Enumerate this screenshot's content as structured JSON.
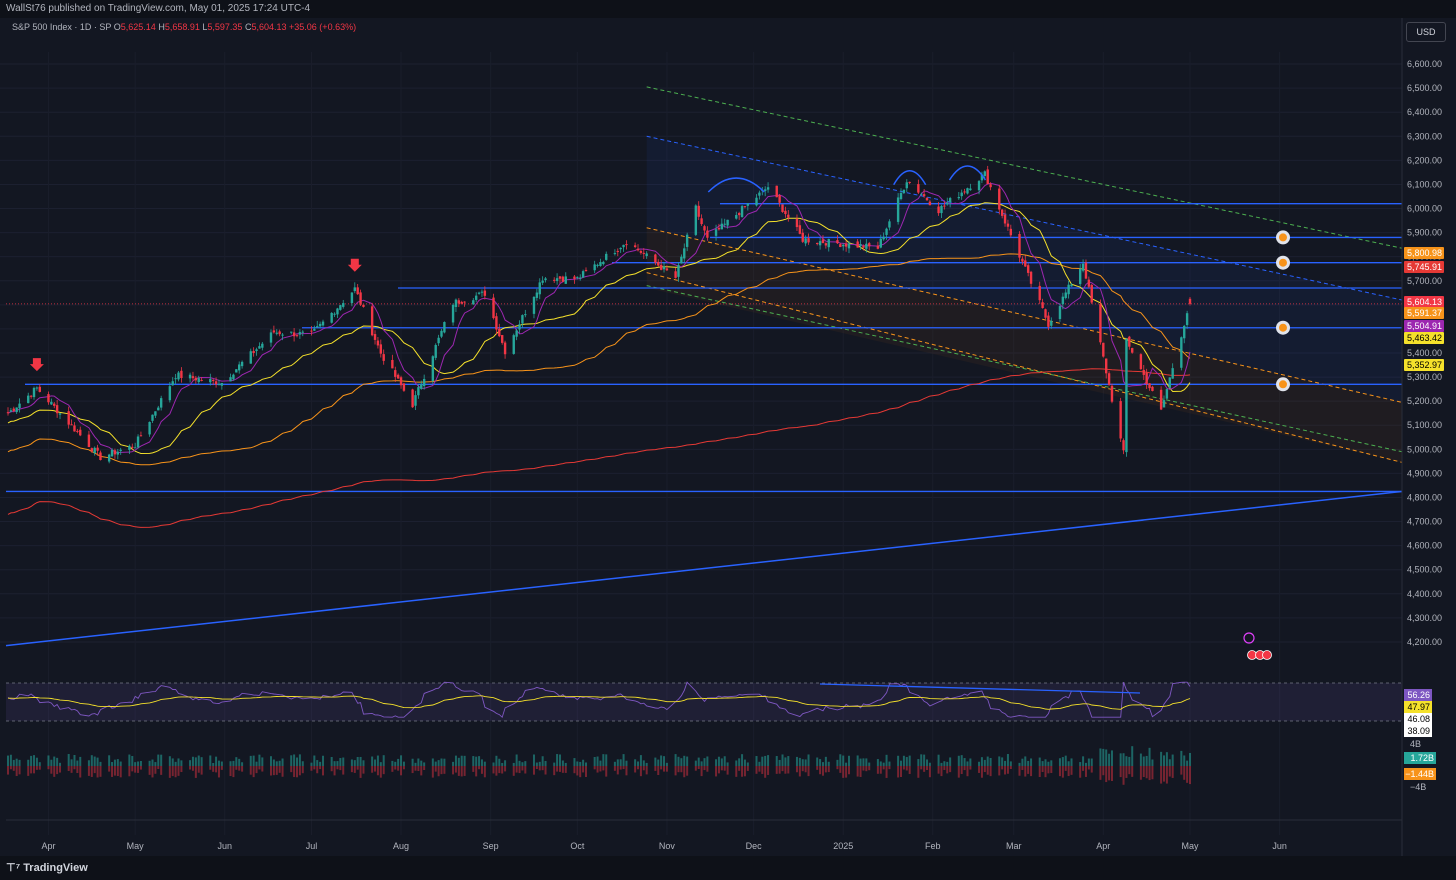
{
  "header": {
    "publisher": "WallSt76 published on TradingView.com, May 01, 2025 17:24 UTC-4",
    "symbol": "S&P 500 Index · 1D · SP",
    "open_label": "O",
    "open": "5,625.14",
    "high_label": "H",
    "high": "5,658.91",
    "low_label": "L",
    "low": "5,597.35",
    "close_label": "C",
    "close": "5,604.13",
    "change": "+35.06 (+0.63%)",
    "currency": "USD"
  },
  "footer": {
    "brand": "TradingView"
  },
  "colors": {
    "background": "#131722",
    "up": "#26a69a",
    "down": "#f23645",
    "level": "#2962ff",
    "ma_yellow": "#f5e12b",
    "ma_orange": "#f7931a",
    "ma_red": "#e53935",
    "rsi": "#7e57c2"
  },
  "chart_data": {
    "type": "candlestick",
    "y_axis": {
      "min": 4150,
      "max": 6650,
      "ticks": [
        "6,600.00",
        "6,500.00",
        "6,400.00",
        "6,300.00",
        "6,200.00",
        "6,100.00",
        "6,000.00",
        "5,900.00",
        "5,800.00",
        "5,700.00",
        "5,600.00",
        "5,500.00",
        "5,400.00",
        "5,300.00",
        "5,200.00",
        "5,100.00",
        "5,000.00",
        "4,900.00",
        "4,800.00",
        "4,700.00",
        "4,600.00",
        "4,500.00",
        "4,400.00",
        "4,300.00",
        "4,200.00"
      ]
    },
    "x_axis": {
      "labels": [
        "Apr",
        "May",
        "Jun",
        "Jul",
        "Aug",
        "Sep",
        "Oct",
        "Nov",
        "Dec",
        "2025",
        "Feb",
        "Mar",
        "Apr",
        "May",
        "Jun"
      ]
    },
    "price_path": [
      [
        "2024-03-18",
        5150
      ],
      [
        "2024-03-28",
        5254
      ],
      [
        "2024-04-19",
        4967
      ],
      [
        "2024-05-01",
        5018
      ],
      [
        "2024-05-15",
        5308
      ],
      [
        "2024-05-31",
        5277
      ],
      [
        "2024-06-18",
        5487
      ],
      [
        "2024-07-01",
        5475
      ],
      [
        "2024-07-16",
        5667
      ],
      [
        "2024-07-25",
        5399
      ],
      [
        "2024-08-05",
        5186
      ],
      [
        "2024-08-19",
        5608
      ],
      [
        "2024-08-30",
        5648
      ],
      [
        "2024-09-06",
        5408
      ],
      [
        "2024-09-19",
        5713
      ],
      [
        "2024-10-01",
        5709
      ],
      [
        "2024-10-18",
        5864
      ],
      [
        "2024-11-04",
        5712
      ],
      [
        "2024-11-11",
        6001
      ],
      [
        "2024-11-15",
        5870
      ],
      [
        "2024-12-06",
        6090
      ],
      [
        "2024-12-18",
        5872
      ],
      [
        "2025-01-13",
        5836
      ],
      [
        "2025-01-23",
        6119
      ],
      [
        "2025-02-03",
        5994
      ],
      [
        "2025-02-19",
        6144
      ],
      [
        "2025-03-13",
        5521
      ],
      [
        "2025-03-25",
        5776
      ],
      [
        "2025-04-08",
        4982
      ],
      [
        "2025-04-09",
        5456
      ],
      [
        "2025-04-21",
        5158
      ],
      [
        "2025-04-30",
        5569
      ],
      [
        "2025-05-01",
        5604
      ]
    ],
    "last_candle": {
      "open": 5625.14,
      "high": 5658.91,
      "low": 5597.35,
      "close": 5604.13
    },
    "price_labels": [
      {
        "value": "5,800.98",
        "color": "#f7931a"
      },
      {
        "value": "5,745.91",
        "color": "#e53935"
      },
      {
        "value": "5,604.13",
        "color": "#f23645"
      },
      {
        "value": "5,591.37",
        "color": "#f7931a"
      },
      {
        "value": "5,504.91",
        "color": "#9c27b0"
      },
      {
        "value": "5,463.42",
        "color": "#f5e12b"
      },
      {
        "value": "5,352.97",
        "color": "#f5e12b"
      }
    ],
    "horizontal_levels": [
      6020,
      5880,
      5775,
      5670,
      5505,
      5270,
      4825
    ],
    "annotations": {
      "markers": [
        {
          "date": "2024-03-28",
          "price": 5254
        },
        {
          "date": "2024-07-16",
          "price": 5667
        }
      ],
      "targets": [
        {
          "price": 5880
        },
        {
          "price": 5775
        },
        {
          "price": 5505
        },
        {
          "price": 5270
        }
      ]
    },
    "rsi": {
      "upper": 75,
      "lower": 25,
      "labels": [
        {
          "value": "56.26",
          "color": "#7e57c2"
        },
        {
          "value": "47.97",
          "color": "#f5e12b"
        },
        {
          "value": "46.08",
          "color": "#131722"
        },
        {
          "value": "38.09",
          "color": "#131722"
        }
      ]
    },
    "volume": {
      "top_label": "4B",
      "bottom_label": "−4B",
      "labels": [
        {
          "value": "1.72B",
          "color": "#26a69a"
        },
        {
          "value": "−1.44B",
          "color": "#f7931a"
        }
      ]
    }
  }
}
